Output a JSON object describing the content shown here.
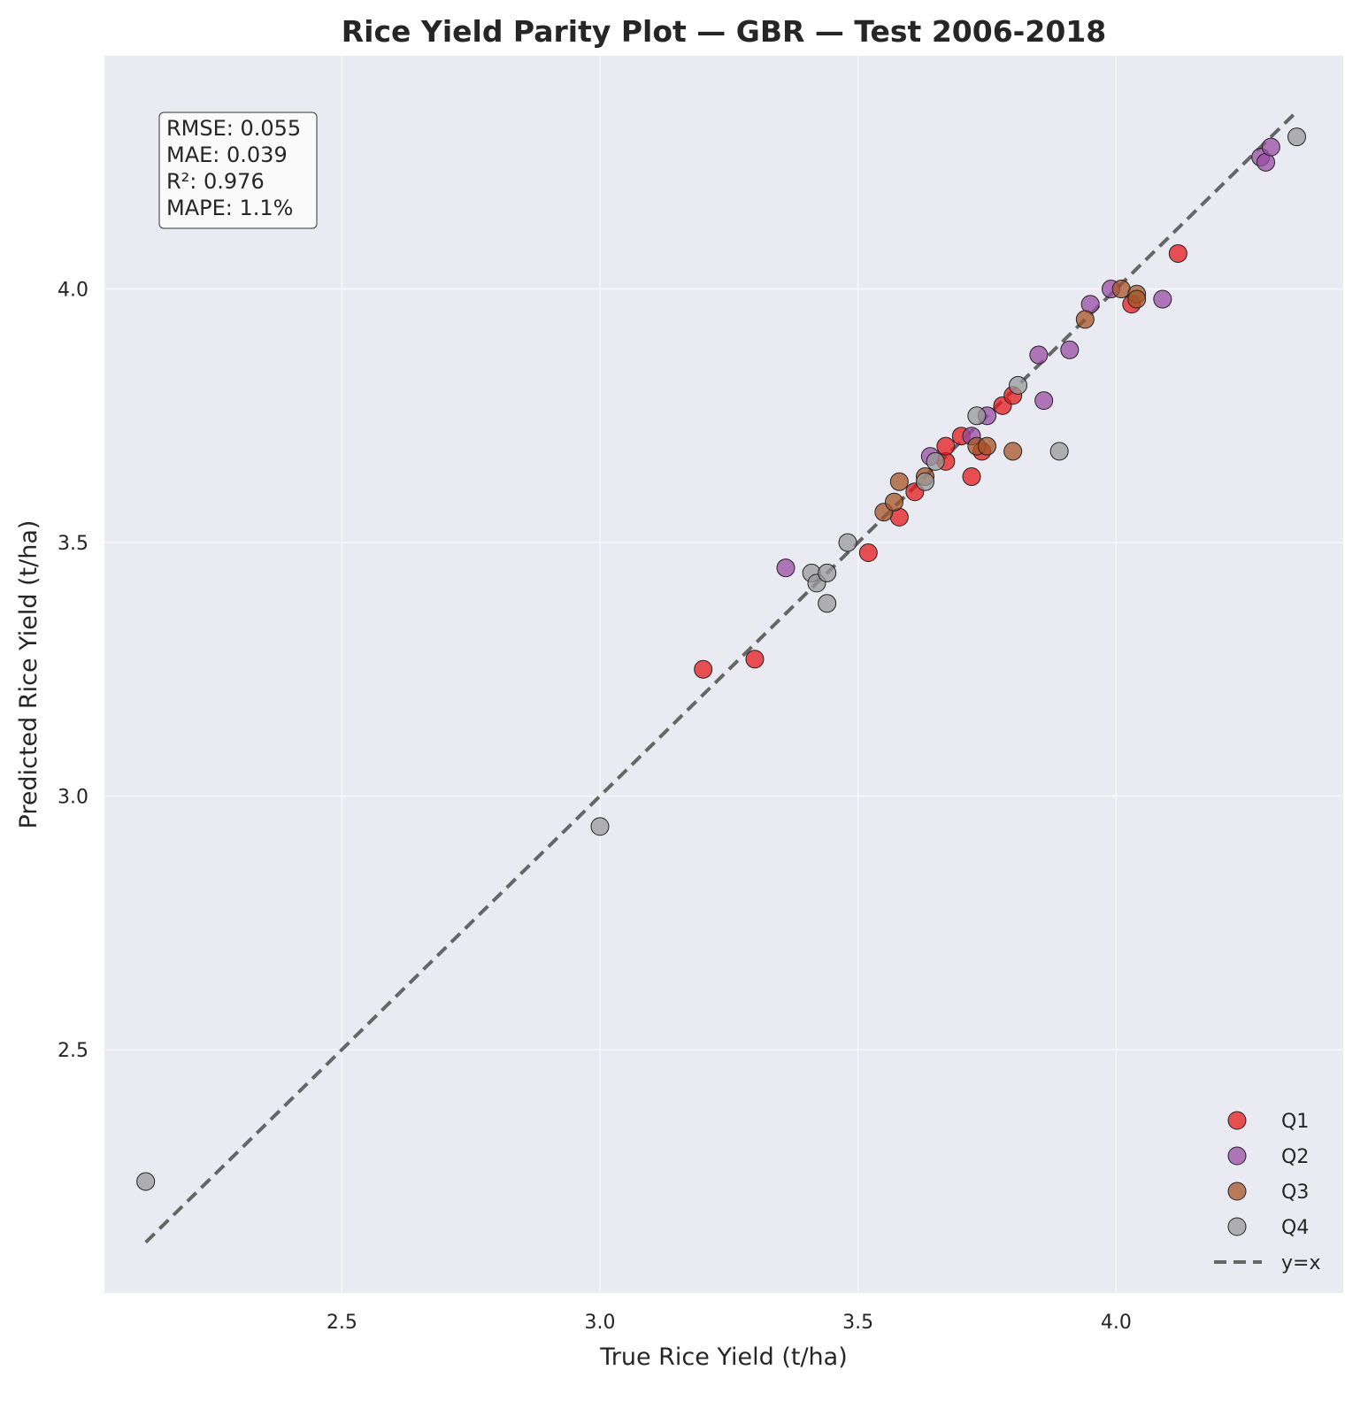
{
  "chart_data": {
    "type": "scatter",
    "title": "Rice Yield Parity Plot — GBR — Test 2006-2018",
    "xlabel": "True Rice Yield (t/ha)",
    "ylabel": "Predicted Rice Yield (t/ha)",
    "xlim": [
      2.04,
      4.44
    ],
    "ylim": [
      2.02,
      4.46
    ],
    "x_ticks": [
      "2.5",
      "3.0",
      "3.5",
      "4.0"
    ],
    "y_ticks": [
      "2.5",
      "3.0",
      "3.5",
      "4.0"
    ],
    "grid": true,
    "legend_position": "bottom-right",
    "stats": {
      "rmse": "RMSE: 0.055",
      "mae": "MAE: 0.039",
      "r2": "R²: 0.976",
      "mape": "MAPE: 1.1%"
    },
    "reference_line": {
      "label": "y=x",
      "x": [
        2.12,
        4.35
      ],
      "y": [
        2.12,
        4.35
      ],
      "color": "#666666"
    },
    "series": [
      {
        "name": "Q1",
        "color": "#e41a1c",
        "points": [
          [
            3.2,
            3.25
          ],
          [
            3.3,
            3.27
          ],
          [
            3.52,
            3.48
          ],
          [
            3.58,
            3.55
          ],
          [
            3.61,
            3.6
          ],
          [
            3.67,
            3.66
          ],
          [
            3.67,
            3.69
          ],
          [
            3.7,
            3.71
          ],
          [
            3.72,
            3.63
          ],
          [
            3.74,
            3.68
          ],
          [
            3.78,
            3.77
          ],
          [
            3.8,
            3.79
          ],
          [
            4.03,
            3.97
          ],
          [
            4.12,
            4.07
          ]
        ]
      },
      {
        "name": "Q2",
        "color": "#984ea3",
        "points": [
          [
            3.36,
            3.45
          ],
          [
            3.64,
            3.67
          ],
          [
            3.72,
            3.71
          ],
          [
            3.75,
            3.75
          ],
          [
            3.85,
            3.87
          ],
          [
            3.86,
            3.78
          ],
          [
            3.91,
            3.88
          ],
          [
            3.95,
            3.97
          ],
          [
            3.99,
            4.0
          ],
          [
            4.09,
            3.98
          ],
          [
            4.28,
            4.26
          ],
          [
            4.29,
            4.25
          ],
          [
            4.3,
            4.28
          ]
        ]
      },
      {
        "name": "Q3",
        "color": "#a65628",
        "points": [
          [
            3.55,
            3.56
          ],
          [
            3.57,
            3.58
          ],
          [
            3.58,
            3.62
          ],
          [
            3.63,
            3.63
          ],
          [
            3.73,
            3.69
          ],
          [
            3.75,
            3.69
          ],
          [
            3.8,
            3.68
          ],
          [
            3.94,
            3.94
          ],
          [
            4.01,
            4.0
          ],
          [
            4.04,
            3.99
          ],
          [
            4.04,
            3.98
          ]
        ]
      },
      {
        "name": "Q4",
        "color": "#999999",
        "points": [
          [
            2.12,
            2.24
          ],
          [
            3.0,
            2.94
          ],
          [
            3.41,
            3.44
          ],
          [
            3.42,
            3.42
          ],
          [
            3.44,
            3.38
          ],
          [
            3.44,
            3.44
          ],
          [
            3.48,
            3.5
          ],
          [
            3.63,
            3.62
          ],
          [
            3.65,
            3.66
          ],
          [
            3.73,
            3.75
          ],
          [
            3.81,
            3.81
          ],
          [
            3.89,
            3.68
          ],
          [
            4.35,
            4.3
          ]
        ]
      }
    ]
  }
}
